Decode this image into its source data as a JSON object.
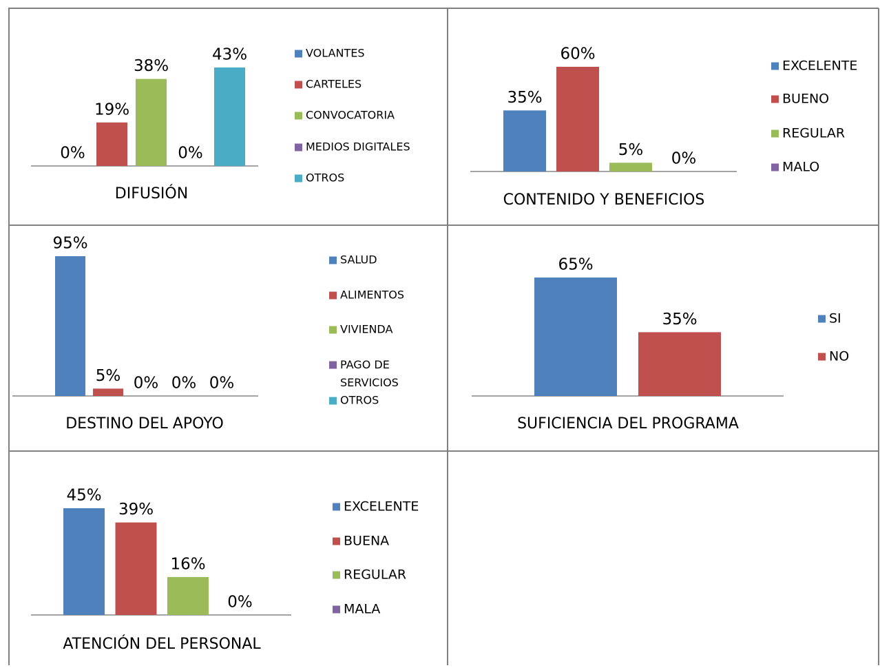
{
  "chart_data": [
    {
      "type": "bar",
      "title": "DIFUSIÓN",
      "categories": [
        "VOLANTES",
        "CARTELES",
        "CONVOCATORIA",
        "MEDIOS DIGITALES",
        "OTROS"
      ],
      "values": [
        0,
        19,
        38,
        0,
        43
      ],
      "value_labels": [
        "0%",
        "19%",
        "38%",
        "0%",
        "43%"
      ],
      "colors": [
        "#4f81bd",
        "#c0504d",
        "#9bbb59",
        "#8064a2",
        "#4bacc6"
      ]
    },
    {
      "type": "bar",
      "title": "CONTENIDO Y BENEFICIOS",
      "categories": [
        "EXCELENTE",
        "BUENO",
        "REGULAR",
        "MALO"
      ],
      "values": [
        35,
        60,
        5,
        0
      ],
      "value_labels": [
        "35%",
        "60%",
        "5%",
        "0%"
      ],
      "colors": [
        "#4f81bd",
        "#c0504d",
        "#9bbb59",
        "#8064a2"
      ]
    },
    {
      "type": "bar",
      "title": "DESTINO DEL APOYO",
      "categories": [
        "SALUD",
        "ALIMENTOS",
        "VIVIENDA",
        "PAGO DE SERVICIOS",
        "OTROS"
      ],
      "values": [
        95,
        5,
        0,
        0,
        0
      ],
      "value_labels": [
        "95%",
        "5%",
        "0%",
        "0%",
        "0%"
      ],
      "colors": [
        "#4f81bd",
        "#c0504d",
        "#9bbb59",
        "#8064a2",
        "#4bacc6"
      ]
    },
    {
      "type": "bar",
      "title": "SUFICIENCIA DEL PROGRAMA",
      "categories": [
        "SI",
        "NO"
      ],
      "values": [
        65,
        35
      ],
      "value_labels": [
        "65%",
        "35%"
      ],
      "colors": [
        "#4f81bd",
        "#c0504d"
      ]
    },
    {
      "type": "bar",
      "title": "ATENCIÓN DEL PERSONAL",
      "categories": [
        "EXCELENTE",
        "BUENA",
        "REGULAR",
        "MALA"
      ],
      "values": [
        45,
        39,
        16,
        0
      ],
      "value_labels": [
        "45%",
        "39%",
        "16%",
        "0%"
      ],
      "colors": [
        "#4f81bd",
        "#c0504d",
        "#9bbb59",
        "#8064a2"
      ]
    }
  ]
}
